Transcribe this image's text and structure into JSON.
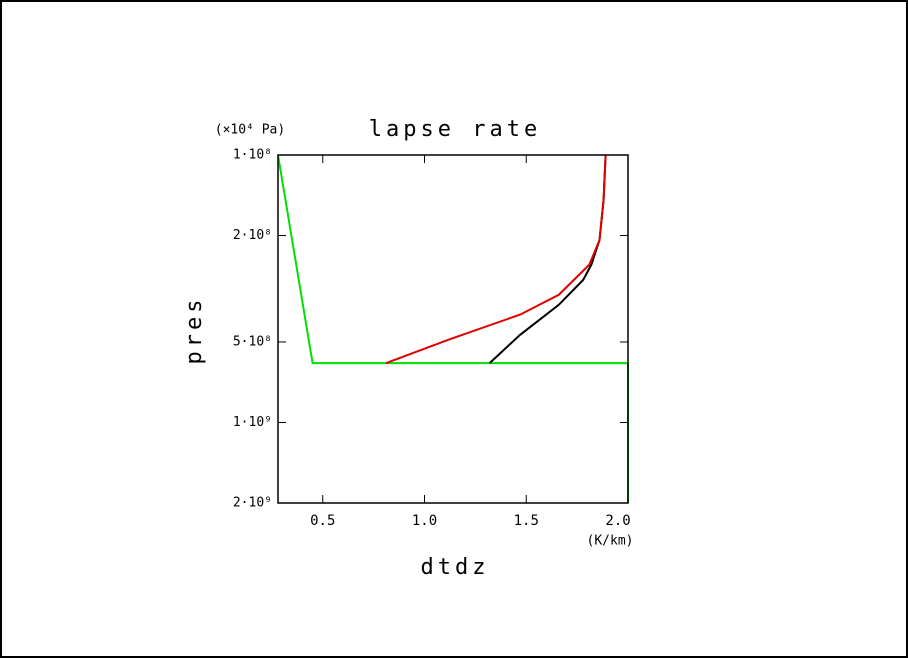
{
  "chart_data": {
    "type": "line",
    "title": "lapse rate",
    "x_label": "dtdz",
    "x_unit": "(K/km)",
    "y_label": "pres",
    "y_unit": "(×10⁴ Pa)",
    "xlim": [
      0.28,
      2.0
    ],
    "xticks": [
      0.5,
      1.0,
      1.5,
      2.0
    ],
    "ylim": [
      100000000,
      2000000000
    ],
    "y_log": true,
    "y_inverted": true,
    "yticks": [
      {
        "value": 100000000,
        "label": "1·10⁸"
      },
      {
        "value": 200000000,
        "label": "2·10⁸"
      },
      {
        "value": 500000000,
        "label": "5·10⁸"
      },
      {
        "value": 1000000000,
        "label": "1·10⁹"
      },
      {
        "value": 2000000000,
        "label": "2·10⁹"
      }
    ],
    "xtick_labels": [
      "0.5",
      "1.0",
      "1.5",
      "2.0"
    ],
    "series": [
      {
        "color": "#00e000",
        "x": [
          0.28,
          0.45,
          2.0,
          2.0
        ],
        "values": [
          100000000,
          600000000,
          600000000,
          2000000000
        ]
      },
      {
        "color": "#000000",
        "x": [
          1.32,
          1.47,
          1.66,
          1.78,
          1.82,
          1.86,
          1.88,
          1.89
        ],
        "values": [
          600000000,
          470000000,
          363000000,
          293000000,
          257000000,
          208000000,
          147000000,
          100000000
        ]
      },
      {
        "color": "#e00000",
        "x": [
          0.81,
          1.12,
          1.47,
          1.66,
          1.81,
          1.86,
          1.88,
          1.89
        ],
        "values": [
          600000000,
          490000000,
          395000000,
          333000000,
          257000000,
          208000000,
          147000000,
          100000000
        ]
      }
    ]
  }
}
